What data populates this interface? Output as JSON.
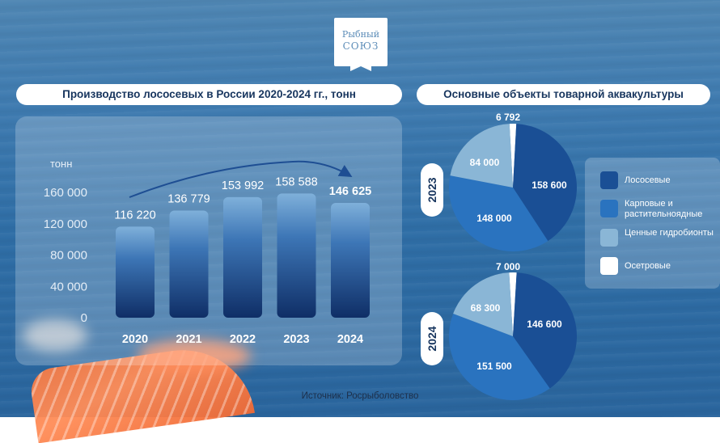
{
  "brand": {
    "line1": "Рыбный",
    "line2": "СОЮЗ"
  },
  "left_title": "Производство лососевых в России 2020-2024 гг., тонн",
  "right_title": "Основные объекты товарной аквакультуры",
  "source": "Источник: Росрыболовство",
  "chart_data": [
    {
      "type": "bar",
      "title": "Производство лососевых в России 2020-2024 гг., тонн",
      "ylabel": "тонн",
      "categories": [
        "2020",
        "2021",
        "2022",
        "2023",
        "2024"
      ],
      "values": [
        116220,
        136779,
        153992,
        158588,
        146625
      ],
      "value_labels": [
        "116 220",
        "136 779",
        "153 992",
        "158 588",
        "146 625"
      ],
      "y_ticks": [
        0,
        40000,
        80000,
        120000,
        160000
      ],
      "y_tick_labels": [
        "0",
        "40 000",
        "80 000",
        "120 000",
        "160 000"
      ],
      "ylim": [
        0,
        160000
      ],
      "grid": false
    },
    {
      "type": "pie",
      "label": "2023",
      "categories": [
        "Лососевые",
        "Карповые и растительноядные",
        "Ценные гидробионты",
        "Осетровые"
      ],
      "values": [
        158600,
        148000,
        84000,
        6792
      ],
      "value_labels": [
        "158 600",
        "148 000",
        "84 000",
        "6 792"
      ],
      "colors": [
        "#1a4f95",
        "#2a73bf",
        "#8ab6d6",
        "#ffffff"
      ]
    },
    {
      "type": "pie",
      "label": "2024",
      "categories": [
        "Лососевые",
        "Карповые и растительноядные",
        "Ценные гидробионты",
        "Осетровые"
      ],
      "values": [
        146600,
        151500,
        68300,
        7000
      ],
      "value_labels": [
        "146 600",
        "151 500",
        "68 300",
        "7 000"
      ],
      "colors": [
        "#1a4f95",
        "#2a73bf",
        "#8ab6d6",
        "#ffffff"
      ]
    }
  ],
  "legend": [
    {
      "label": "Лососевые",
      "color": "#1a4f95"
    },
    {
      "label": "Карповые и растительноядные",
      "color": "#2a73bf"
    },
    {
      "label": "Ценные гидробионты",
      "color": "#8ab6d6"
    },
    {
      "label": "Осетровые",
      "color": "#ffffff"
    }
  ]
}
